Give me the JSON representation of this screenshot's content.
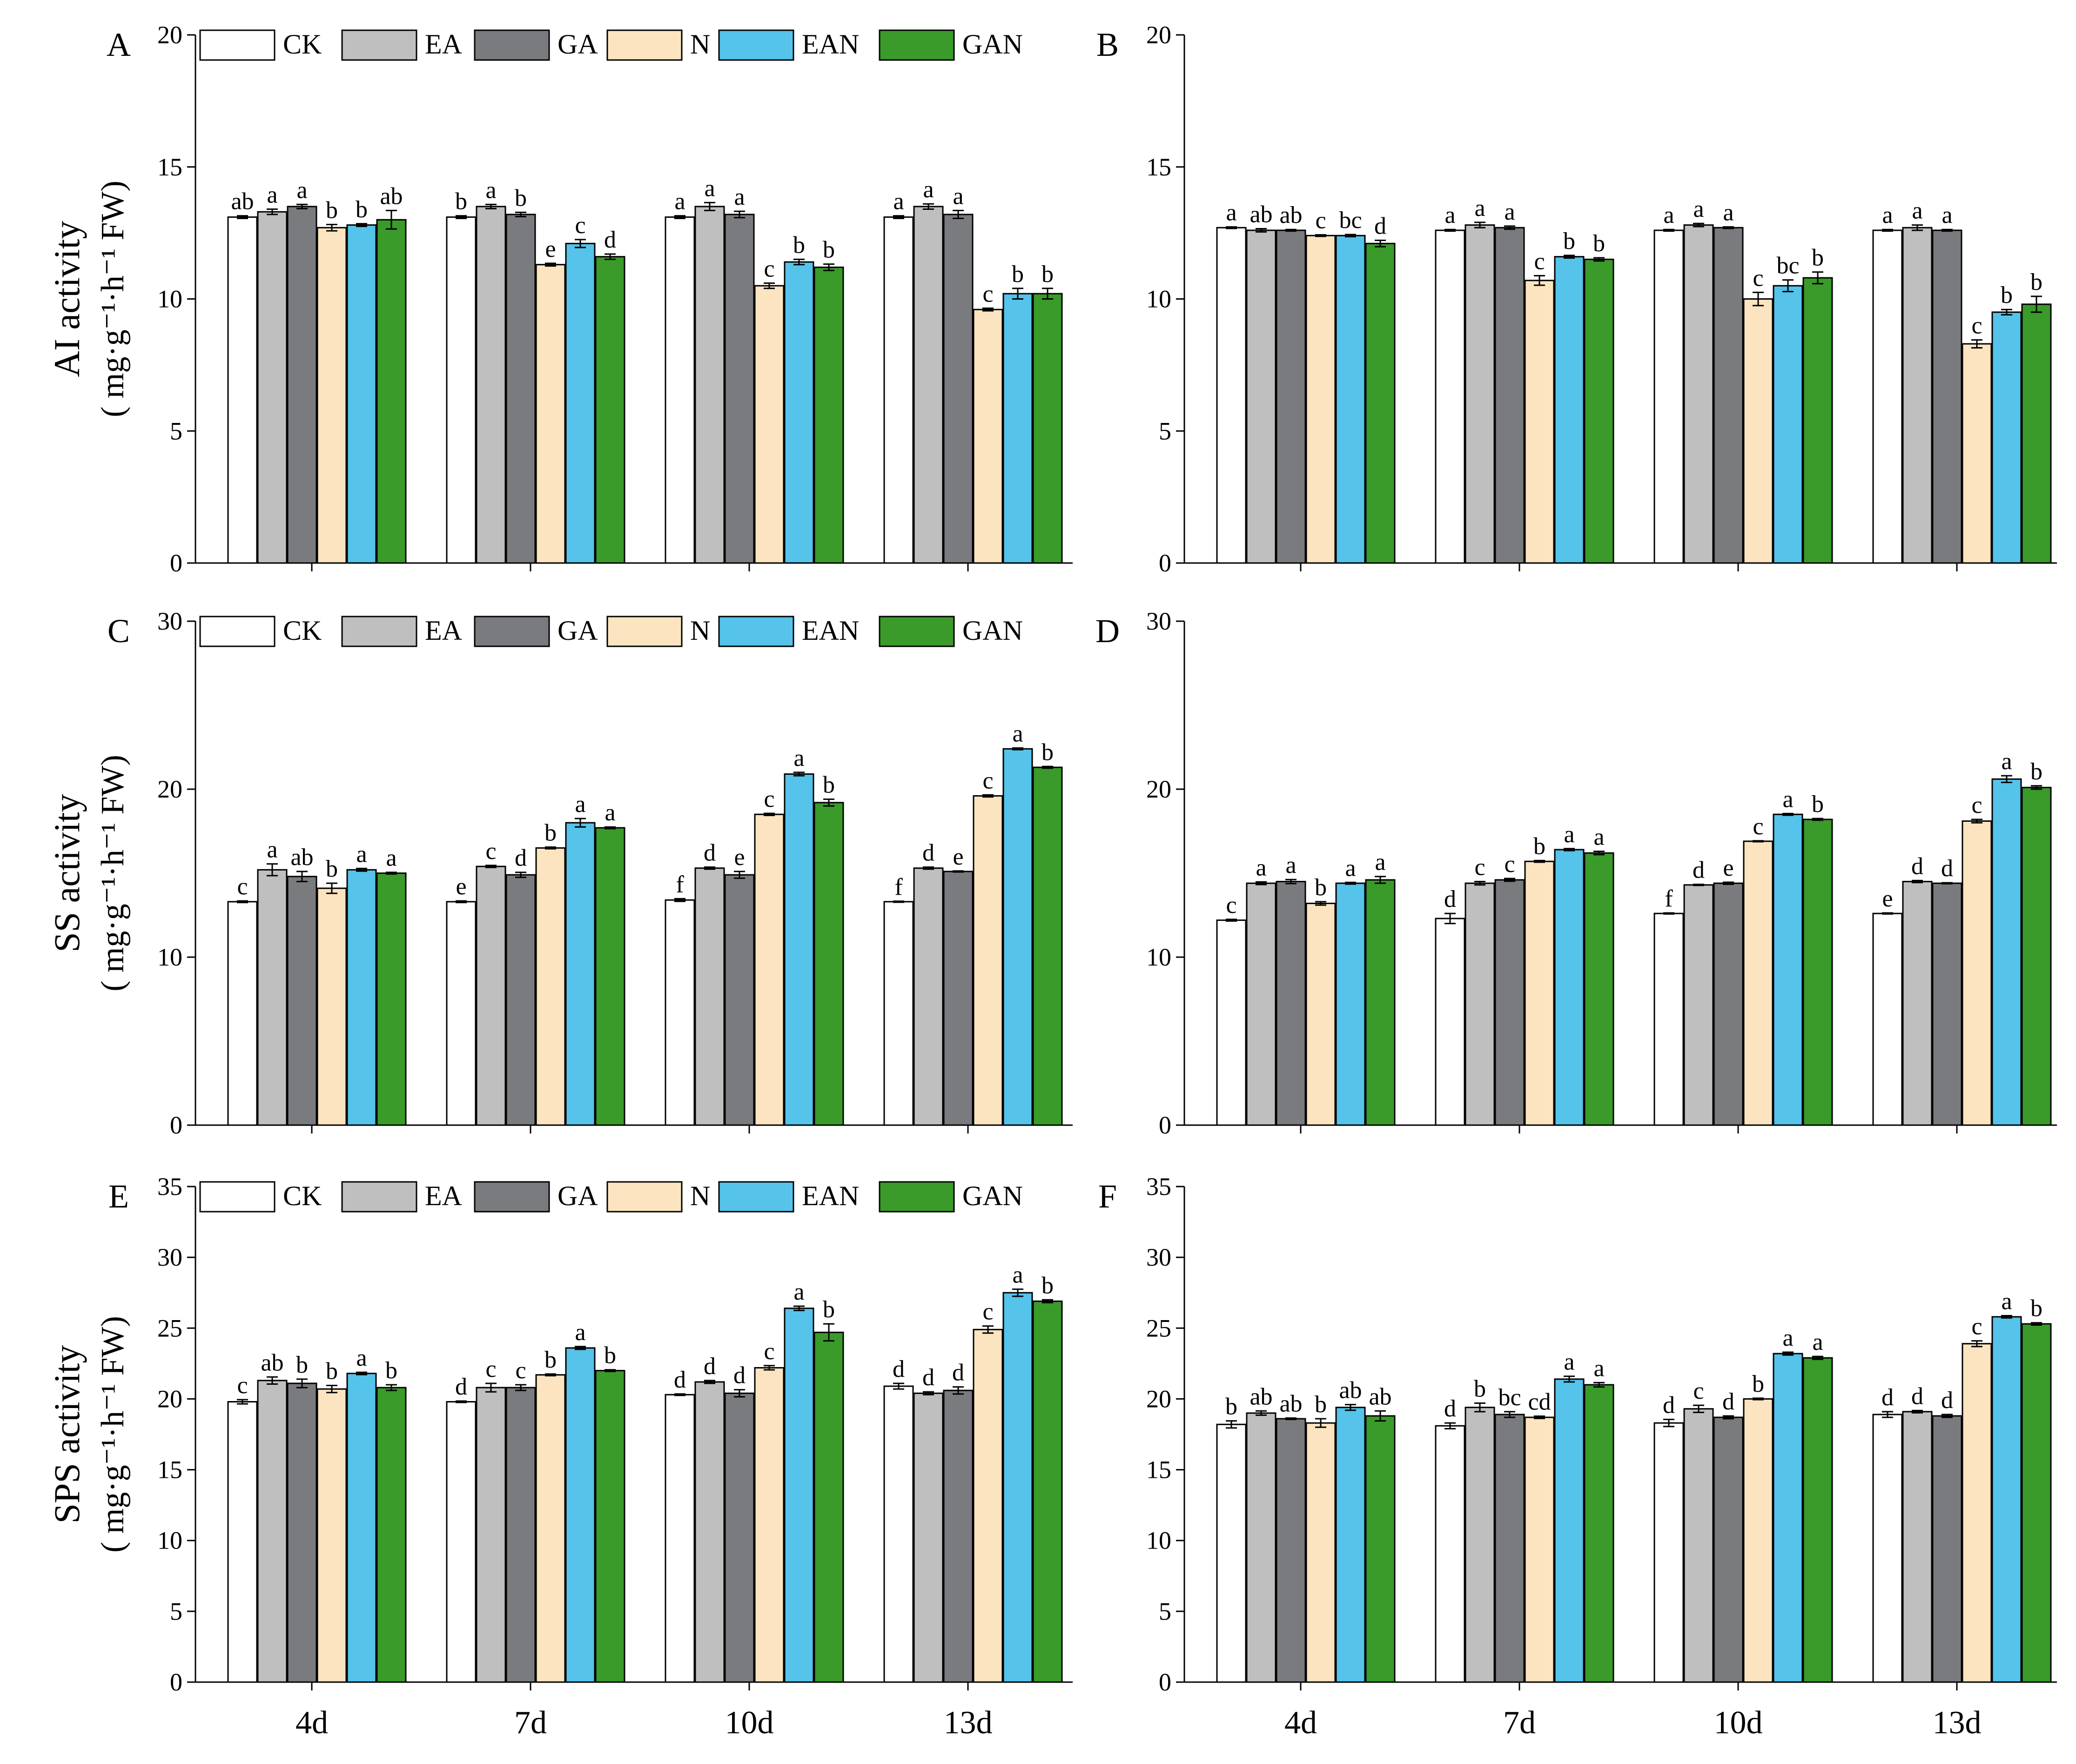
{
  "chart_data": {
    "type": "bar",
    "categories": [
      "4d",
      "7d",
      "10d",
      "13d"
    ],
    "series_names": [
      "CK",
      "EA",
      "GA",
      "N",
      "EAN",
      "GAN"
    ],
    "colors": {
      "CK": "#ffffff",
      "EA": "#bfbfbf",
      "GA": "#7a7b7e",
      "N": "#fce4c0",
      "EAN": "#55c3ea",
      "GAN": "#3a9a2a"
    },
    "xlabel": "",
    "rows": [
      {
        "ylabel_line1": "AI activity",
        "ylabel_line2": "( mg·g⁻¹·h⁻¹ FW)"
      },
      {
        "ylabel_line1": "SS activity",
        "ylabel_line2": "( mg·g⁻¹·h⁻¹ FW)"
      },
      {
        "ylabel_line1": "SPS activity",
        "ylabel_line2": "( mg·g⁻¹·h⁻¹ FW)"
      }
    ],
    "panels": [
      {
        "letter": "A",
        "title": "",
        "ylim": [
          0,
          20
        ],
        "yticks": [
          0,
          5,
          10,
          15,
          20
        ],
        "legend": true,
        "values": [
          [
            13.1,
            13.3,
            13.5,
            12.7,
            12.8,
            13.0
          ],
          [
            13.1,
            13.5,
            13.2,
            11.3,
            12.1,
            11.6
          ],
          [
            13.1,
            13.5,
            13.2,
            10.5,
            11.4,
            11.2
          ],
          [
            13.1,
            13.5,
            13.2,
            9.6,
            10.2,
            10.2
          ]
        ],
        "errors": [
          [
            0.05,
            0.1,
            0.08,
            0.12,
            0.05,
            0.35
          ],
          [
            0.05,
            0.08,
            0.08,
            0.05,
            0.15,
            0.1
          ],
          [
            0.05,
            0.15,
            0.12,
            0.1,
            0.1,
            0.12
          ],
          [
            0.05,
            0.1,
            0.15,
            0.05,
            0.2,
            0.2
          ]
        ],
        "letters": [
          [
            "ab",
            "a",
            "a",
            "b",
            "b",
            "ab"
          ],
          [
            "b",
            "a",
            "b",
            "e",
            "c",
            "d"
          ],
          [
            "a",
            "a",
            "a",
            "c",
            "b",
            "b"
          ],
          [
            "a",
            "a",
            "a",
            "c",
            "b",
            "b"
          ]
        ]
      },
      {
        "letter": "B",
        "title": "",
        "ylim": [
          0,
          20
        ],
        "yticks": [
          0,
          5,
          10,
          15,
          20
        ],
        "legend": false,
        "values": [
          [
            12.7,
            12.6,
            12.6,
            12.4,
            12.4,
            12.1
          ],
          [
            12.6,
            12.8,
            12.7,
            10.7,
            11.6,
            11.5
          ],
          [
            12.6,
            12.8,
            12.7,
            10.0,
            10.5,
            10.8
          ],
          [
            12.6,
            12.7,
            12.6,
            8.3,
            9.5,
            9.8
          ]
        ],
        "errors": [
          [
            0.03,
            0.06,
            0.03,
            0.03,
            0.04,
            0.12
          ],
          [
            0.03,
            0.1,
            0.06,
            0.18,
            0.05,
            0.06
          ],
          [
            0.03,
            0.06,
            0.03,
            0.25,
            0.22,
            0.22
          ],
          [
            0.03,
            0.1,
            0.03,
            0.15,
            0.1,
            0.3
          ]
        ],
        "letters": [
          [
            "a",
            "ab",
            "ab",
            "c",
            "bc",
            "d"
          ],
          [
            "a",
            "a",
            "a",
            "c",
            "b",
            "b"
          ],
          [
            "a",
            "a",
            "a",
            "c",
            "bc",
            "b"
          ],
          [
            "a",
            "a",
            "a",
            "c",
            "b",
            "b"
          ]
        ]
      },
      {
        "letter": "C",
        "title": "",
        "ylim": [
          0,
          30
        ],
        "yticks": [
          0,
          10,
          20,
          30
        ],
        "legend": true,
        "values": [
          [
            13.3,
            15.2,
            14.8,
            14.1,
            15.2,
            15.0
          ],
          [
            13.3,
            15.4,
            14.9,
            16.5,
            18.0,
            17.7
          ],
          [
            13.4,
            15.3,
            14.9,
            18.5,
            20.9,
            19.2
          ],
          [
            13.3,
            15.3,
            15.1,
            19.6,
            22.4,
            21.3
          ]
        ],
        "errors": [
          [
            0.05,
            0.35,
            0.3,
            0.3,
            0.08,
            0.05
          ],
          [
            0.05,
            0.06,
            0.15,
            0.05,
            0.25,
            0.05
          ],
          [
            0.08,
            0.06,
            0.2,
            0.06,
            0.1,
            0.2
          ],
          [
            0.03,
            0.06,
            0.03,
            0.06,
            0.05,
            0.05
          ]
        ],
        "letters": [
          [
            "c",
            "a",
            "ab",
            "b",
            "a",
            "a"
          ],
          [
            "e",
            "c",
            "d",
            "b",
            "a",
            "a"
          ],
          [
            "f",
            "d",
            "e",
            "c",
            "a",
            "b"
          ],
          [
            "f",
            "d",
            "e",
            "c",
            "a",
            "b"
          ]
        ]
      },
      {
        "letter": "D",
        "title": "",
        "ylim": [
          0,
          30
        ],
        "yticks": [
          0,
          10,
          20,
          30
        ],
        "legend": false,
        "values": [
          [
            12.2,
            14.4,
            14.5,
            13.2,
            14.4,
            14.6
          ],
          [
            12.3,
            14.4,
            14.6,
            15.7,
            16.4,
            16.2
          ],
          [
            12.6,
            14.3,
            14.4,
            16.9,
            18.5,
            18.2
          ],
          [
            12.6,
            14.5,
            14.4,
            18.1,
            20.6,
            20.1
          ]
        ],
        "errors": [
          [
            0.05,
            0.08,
            0.12,
            0.1,
            0.05,
            0.2
          ],
          [
            0.3,
            0.1,
            0.08,
            0.05,
            0.06,
            0.1
          ],
          [
            0.03,
            0.03,
            0.06,
            0.03,
            0.05,
            0.05
          ],
          [
            0.03,
            0.06,
            0.03,
            0.1,
            0.2,
            0.1
          ]
        ],
        "letters": [
          [
            "c",
            "a",
            "a",
            "b",
            "a",
            "a"
          ],
          [
            "d",
            "c",
            "c",
            "b",
            "a",
            "a"
          ],
          [
            "f",
            "d",
            "e",
            "c",
            "a",
            "b"
          ],
          [
            "e",
            "d",
            "d",
            "c",
            "a",
            "b"
          ]
        ]
      },
      {
        "letter": "E",
        "title": "",
        "ylim": [
          0,
          35
        ],
        "yticks": [
          0,
          5,
          10,
          15,
          20,
          25,
          30,
          35
        ],
        "legend": true,
        "values": [
          [
            19.8,
            21.3,
            21.1,
            20.7,
            21.8,
            20.8
          ],
          [
            19.8,
            20.8,
            20.8,
            21.7,
            23.6,
            22.0
          ],
          [
            20.3,
            21.2,
            20.4,
            22.2,
            26.4,
            24.7
          ],
          [
            20.9,
            20.4,
            20.6,
            24.9,
            27.5,
            26.9
          ]
        ],
        "errors": [
          [
            0.15,
            0.25,
            0.3,
            0.25,
            0.08,
            0.2
          ],
          [
            0.05,
            0.3,
            0.2,
            0.06,
            0.1,
            0.06
          ],
          [
            0.05,
            0.1,
            0.25,
            0.15,
            0.15,
            0.6
          ],
          [
            0.2,
            0.1,
            0.25,
            0.25,
            0.25,
            0.1
          ]
        ],
        "letters": [
          [
            "c",
            "ab",
            "b",
            "b",
            "a",
            "b"
          ],
          [
            "d",
            "c",
            "c",
            "b",
            "a",
            "b"
          ],
          [
            "d",
            "d",
            "d",
            "c",
            "a",
            "b"
          ],
          [
            "d",
            "d",
            "d",
            "c",
            "a",
            "b"
          ]
        ]
      },
      {
        "letter": "F",
        "title": "",
        "ylim": [
          0,
          35
        ],
        "yticks": [
          0,
          5,
          10,
          15,
          20,
          25,
          30,
          35
        ],
        "legend": false,
        "values": [
          [
            18.2,
            19.0,
            18.6,
            18.3,
            19.4,
            18.8
          ],
          [
            18.1,
            19.4,
            18.9,
            18.7,
            21.4,
            21.0
          ],
          [
            18.3,
            19.3,
            18.7,
            20.0,
            23.2,
            22.9
          ],
          [
            18.9,
            19.1,
            18.8,
            23.9,
            25.8,
            25.3
          ]
        ],
        "errors": [
          [
            0.25,
            0.15,
            0.05,
            0.3,
            0.2,
            0.35
          ],
          [
            0.2,
            0.3,
            0.2,
            0.08,
            0.2,
            0.15
          ],
          [
            0.25,
            0.25,
            0.1,
            0.05,
            0.1,
            0.1
          ],
          [
            0.2,
            0.08,
            0.1,
            0.2,
            0.08,
            0.08
          ]
        ],
        "letters": [
          [
            "b",
            "ab",
            "ab",
            "b",
            "ab",
            "ab"
          ],
          [
            "d",
            "b",
            "bc",
            "cd",
            "a",
            "a"
          ],
          [
            "d",
            "c",
            "d",
            "b",
            "a",
            "a"
          ],
          [
            "d",
            "d",
            "d",
            "c",
            "a",
            "b"
          ]
        ]
      }
    ]
  }
}
